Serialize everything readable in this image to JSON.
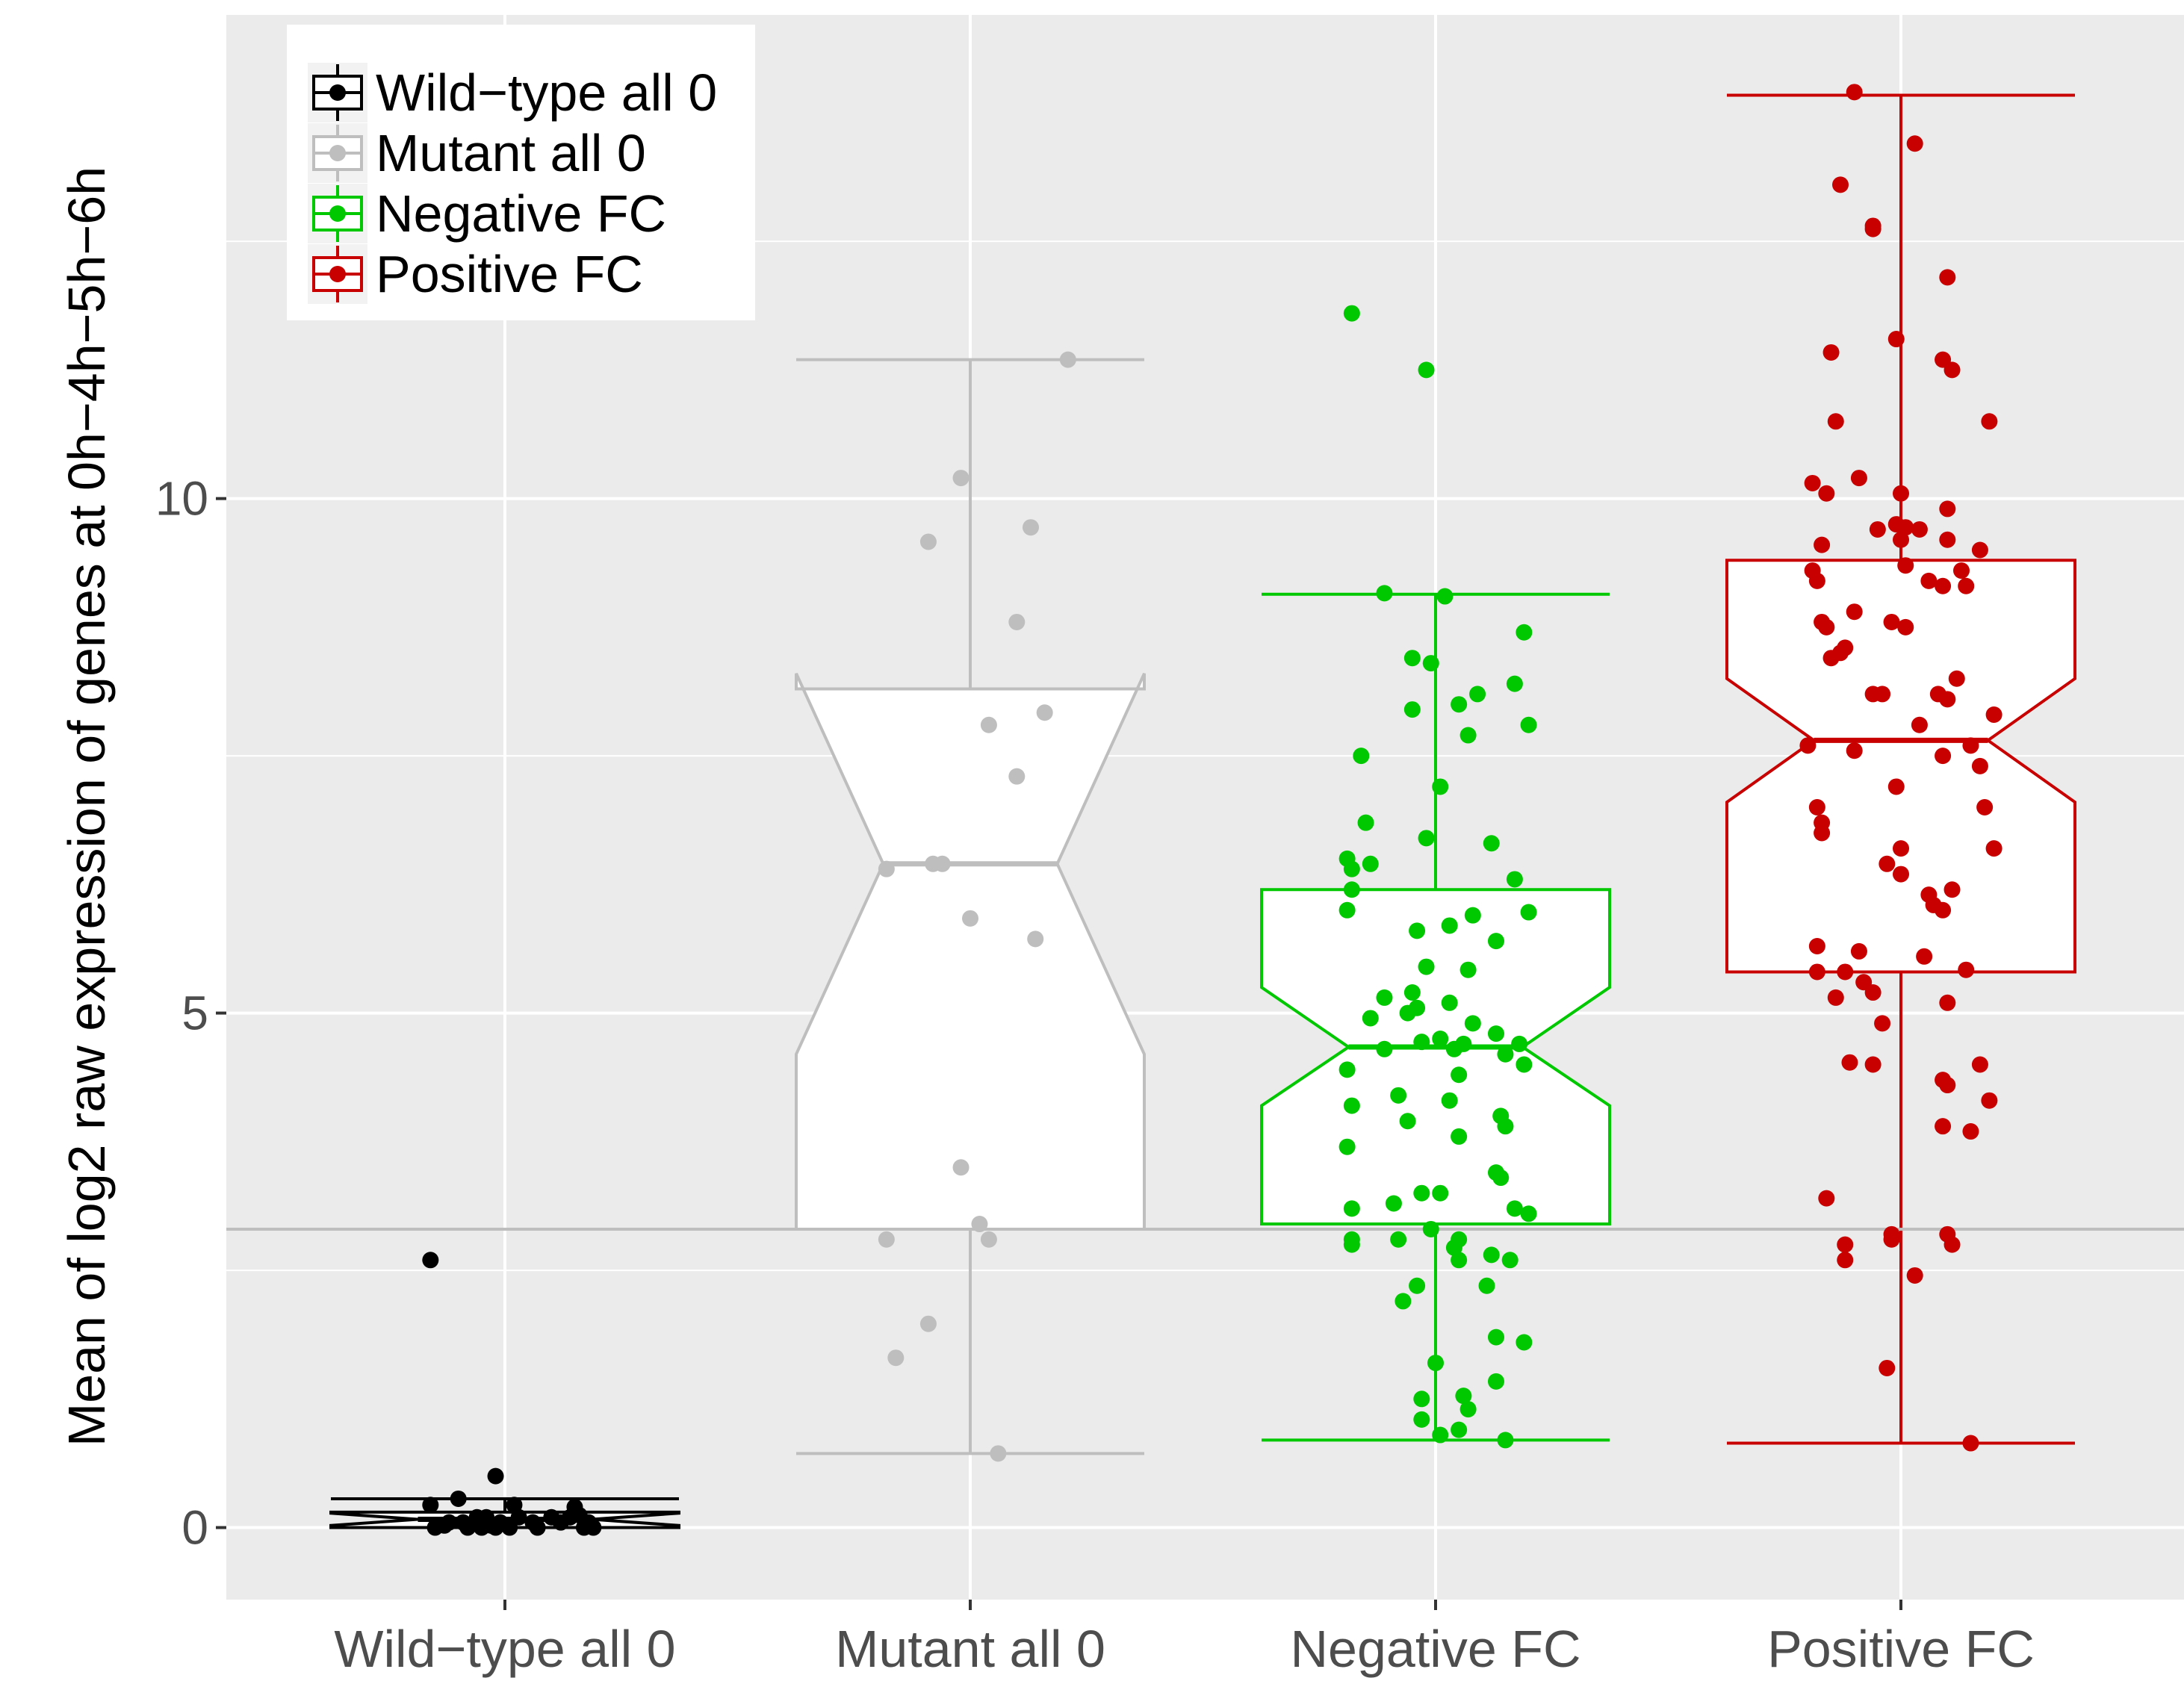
{
  "chart_data": {
    "type": "boxplot",
    "title": "",
    "xlabel": "",
    "ylabel": "Mean of log2 raw expression of genes at 0h−4h−5h−6h",
    "ylim": [
      -0.7,
      14.7
    ],
    "yticks": [
      0,
      5,
      10
    ],
    "ytick_labels": [
      "0",
      "5",
      "10"
    ],
    "reference_line_y": 2.9,
    "categories": [
      "Wild−type all 0",
      "Mutant all 0",
      "Negative FC",
      "Positive FC"
    ],
    "legend": {
      "position": "top-left",
      "entries": [
        "Wild−type all 0",
        "Mutant all 0",
        "Negative FC",
        "Positive FC"
      ]
    },
    "series": [
      {
        "name": "Wild−type all 0",
        "color": "#000000",
        "box": {
          "whisker_low": 0,
          "q1": 0,
          "median": 0.08,
          "q3": 0.15,
          "whisker_high": 0.28,
          "notch_low": 0.02,
          "notch_high": 0.14
        },
        "points": [
          [
            -0.16,
            2.6
          ],
          [
            -0.16,
            0.22
          ],
          [
            -0.1,
            0.28
          ],
          [
            -0.02,
            0.5
          ],
          [
            0.02,
            0.22
          ],
          [
            0.15,
            0.2
          ],
          [
            0.1,
            0.1
          ],
          [
            0.06,
            0.05
          ],
          [
            -0.04,
            0.1
          ],
          [
            -0.12,
            0.05
          ],
          [
            -0.03,
            0.02
          ],
          [
            0.18,
            0.05
          ],
          [
            -0.15,
            0.0
          ],
          [
            -0.08,
            0.0
          ],
          [
            -0.06,
            0.1
          ],
          [
            -0.01,
            0.05
          ],
          [
            0.03,
            0.1
          ],
          [
            0.07,
            0.0
          ],
          [
            0.12,
            0.05
          ],
          [
            0.17,
            0.0
          ],
          [
            -0.13,
            0.02
          ],
          [
            -0.02,
            0.0
          ],
          [
            0.01,
            0.0
          ],
          [
            0.14,
            0.1
          ],
          [
            0.19,
            0.0
          ],
          [
            -0.05,
            0.0
          ],
          [
            0.16,
            0.12
          ],
          [
            -0.09,
            0.05
          ]
        ]
      },
      {
        "name": "Mutant all 0",
        "color": "#bebebe",
        "box": {
          "whisker_low": 0.72,
          "q1": 2.9,
          "median": 6.45,
          "q3": 8.15,
          "whisker_high": 11.35,
          "notch_low": 4.6,
          "notch_high": 8.3
        },
        "points": [
          [
            0.21,
            11.35
          ],
          [
            -0.02,
            10.2
          ],
          [
            0.13,
            9.72
          ],
          [
            -0.09,
            9.58
          ],
          [
            0.1,
            8.8
          ],
          [
            0.04,
            7.8
          ],
          [
            0.16,
            7.92
          ],
          [
            0.1,
            7.3
          ],
          [
            -0.08,
            6.45
          ],
          [
            -0.18,
            6.4
          ],
          [
            -0.06,
            6.45
          ],
          [
            0.0,
            5.92
          ],
          [
            0.14,
            5.72
          ],
          [
            -0.02,
            3.5
          ],
          [
            0.02,
            2.95
          ],
          [
            0.04,
            2.8
          ],
          [
            -0.18,
            2.8
          ],
          [
            -0.09,
            1.98
          ],
          [
            -0.16,
            1.65
          ],
          [
            0.06,
            0.72
          ]
        ]
      },
      {
        "name": "Negative FC",
        "color": "#00c800",
        "box": {
          "whisker_low": 0.85,
          "q1": 2.95,
          "median": 4.67,
          "q3": 6.2,
          "whisker_high": 9.07,
          "notch_low": 4.1,
          "notch_high": 5.25
        },
        "points": [
          [
            -0.18,
            11.8
          ],
          [
            -0.02,
            11.25
          ],
          [
            -0.11,
            9.08
          ],
          [
            0.02,
            9.05
          ],
          [
            0.19,
            8.7
          ],
          [
            -0.05,
            8.45
          ],
          [
            -0.01,
            8.4
          ],
          [
            0.17,
            8.2
          ],
          [
            0.09,
            8.1
          ],
          [
            0.05,
            8.0
          ],
          [
            -0.05,
            7.95
          ],
          [
            0.2,
            7.8
          ],
          [
            0.07,
            7.7
          ],
          [
            -0.16,
            7.5
          ],
          [
            0.01,
            7.2
          ],
          [
            -0.15,
            6.85
          ],
          [
            -0.02,
            6.7
          ],
          [
            0.12,
            6.65
          ],
          [
            -0.19,
            6.5
          ],
          [
            -0.14,
            6.45
          ],
          [
            -0.18,
            6.4
          ],
          [
            0.17,
            6.3
          ],
          [
            -0.18,
            6.2
          ],
          [
            -0.19,
            6.0
          ],
          [
            0.2,
            5.98
          ],
          [
            0.08,
            5.95
          ],
          [
            0.03,
            5.85
          ],
          [
            -0.04,
            5.8
          ],
          [
            0.13,
            5.7
          ],
          [
            -0.02,
            5.45
          ],
          [
            0.07,
            5.42
          ],
          [
            -0.05,
            5.2
          ],
          [
            -0.11,
            5.15
          ],
          [
            0.03,
            5.1
          ],
          [
            -0.04,
            5.05
          ],
          [
            -0.06,
            5.0
          ],
          [
            -0.14,
            4.95
          ],
          [
            0.08,
            4.9
          ],
          [
            0.13,
            4.8
          ],
          [
            0.01,
            4.75
          ],
          [
            -0.03,
            4.72
          ],
          [
            0.06,
            4.7
          ],
          [
            0.18,
            4.7
          ],
          [
            -0.11,
            4.65
          ],
          [
            0.04,
            4.65
          ],
          [
            0.15,
            4.6
          ],
          [
            0.19,
            4.5
          ],
          [
            -0.19,
            4.45
          ],
          [
            0.05,
            4.4
          ],
          [
            -0.08,
            4.2
          ],
          [
            0.03,
            4.15
          ],
          [
            -0.18,
            4.1
          ],
          [
            0.14,
            4.0
          ],
          [
            -0.06,
            3.95
          ],
          [
            0.15,
            3.9
          ],
          [
            0.05,
            3.8
          ],
          [
            -0.19,
            3.7
          ],
          [
            0.13,
            3.45
          ],
          [
            0.14,
            3.4
          ],
          [
            -0.03,
            3.25
          ],
          [
            0.01,
            3.25
          ],
          [
            -0.09,
            3.15
          ],
          [
            -0.18,
            3.1
          ],
          [
            0.17,
            3.1
          ],
          [
            0.2,
            3.05
          ],
          [
            -0.01,
            2.9
          ],
          [
            -0.18,
            2.8
          ],
          [
            -0.08,
            2.8
          ],
          [
            0.05,
            2.8
          ],
          [
            -0.18,
            2.75
          ],
          [
            0.04,
            2.72
          ],
          [
            0.12,
            2.65
          ],
          [
            0.16,
            2.6
          ],
          [
            0.05,
            2.6
          ],
          [
            -0.04,
            2.35
          ],
          [
            0.11,
            2.35
          ],
          [
            -0.07,
            2.2
          ],
          [
            0.13,
            1.85
          ],
          [
            0.19,
            1.8
          ],
          [
            0.0,
            1.6
          ],
          [
            0.13,
            1.42
          ],
          [
            -0.03,
            1.25
          ],
          [
            0.06,
            1.28
          ],
          [
            0.07,
            1.15
          ],
          [
            -0.03,
            1.05
          ],
          [
            0.05,
            0.95
          ],
          [
            0.01,
            0.9
          ],
          [
            0.15,
            0.85
          ]
        ]
      },
      {
        "name": "Positive FC",
        "color": "#c80000",
        "box": {
          "whisker_low": 0.82,
          "q1": 5.4,
          "median": 7.65,
          "q3": 9.4,
          "whisker_high": 13.92,
          "notch_low": 7.05,
          "notch_high": 8.25
        },
        "points": [
          [
            -0.1,
            13.95
          ],
          [
            0.03,
            13.45
          ],
          [
            -0.13,
            13.05
          ],
          [
            -0.06,
            12.65
          ],
          [
            -0.06,
            12.62
          ],
          [
            0.1,
            12.15
          ],
          [
            -0.01,
            11.55
          ],
          [
            -0.15,
            11.42
          ],
          [
            0.09,
            11.35
          ],
          [
            0.11,
            11.25
          ],
          [
            0.19,
            10.75
          ],
          [
            -0.14,
            10.75
          ],
          [
            -0.19,
            10.15
          ],
          [
            -0.09,
            10.2
          ],
          [
            -0.16,
            10.05
          ],
          [
            0.0,
            10.05
          ],
          [
            0.1,
            9.9
          ],
          [
            -0.01,
            9.75
          ],
          [
            0.01,
            9.72
          ],
          [
            -0.05,
            9.7
          ],
          [
            0.04,
            9.7
          ],
          [
            0.0,
            9.6
          ],
          [
            0.1,
            9.6
          ],
          [
            -0.17,
            9.55
          ],
          [
            0.17,
            9.5
          ],
          [
            0.01,
            9.35
          ],
          [
            0.13,
            9.3
          ],
          [
            -0.19,
            9.3
          ],
          [
            -0.18,
            9.2
          ],
          [
            0.06,
            9.2
          ],
          [
            0.09,
            9.15
          ],
          [
            0.14,
            9.15
          ],
          [
            -0.1,
            8.9
          ],
          [
            -0.17,
            8.8
          ],
          [
            -0.02,
            8.8
          ],
          [
            0.01,
            8.75
          ],
          [
            -0.16,
            8.75
          ],
          [
            -0.12,
            8.55
          ],
          [
            -0.13,
            8.5
          ],
          [
            -0.15,
            8.45
          ],
          [
            0.12,
            8.25
          ],
          [
            -0.04,
            8.1
          ],
          [
            0.08,
            8.1
          ],
          [
            -0.06,
            8.1
          ],
          [
            0.1,
            8.05
          ],
          [
            0.2,
            7.9
          ],
          [
            0.04,
            7.8
          ],
          [
            0.15,
            7.6
          ],
          [
            -0.2,
            7.6
          ],
          [
            -0.1,
            7.55
          ],
          [
            0.09,
            7.5
          ],
          [
            0.17,
            7.4
          ],
          [
            -0.01,
            7.2
          ],
          [
            0.18,
            7.0
          ],
          [
            -0.18,
            7.0
          ],
          [
            -0.17,
            6.85
          ],
          [
            -0.17,
            6.75
          ],
          [
            0.0,
            6.6
          ],
          [
            0.2,
            6.6
          ],
          [
            -0.03,
            6.45
          ],
          [
            0.0,
            6.35
          ],
          [
            0.11,
            6.2
          ],
          [
            0.06,
            6.15
          ],
          [
            0.07,
            6.05
          ],
          [
            0.09,
            6.0
          ],
          [
            -0.18,
            5.65
          ],
          [
            -0.09,
            5.6
          ],
          [
            0.05,
            5.55
          ],
          [
            -0.08,
            5.3
          ],
          [
            0.14,
            5.42
          ],
          [
            -0.12,
            5.4
          ],
          [
            -0.18,
            5.4
          ],
          [
            -0.14,
            5.15
          ],
          [
            -0.06,
            5.2
          ],
          [
            -0.04,
            4.9
          ],
          [
            0.1,
            5.1
          ],
          [
            -0.11,
            4.52
          ],
          [
            -0.06,
            4.5
          ],
          [
            0.17,
            4.5
          ],
          [
            0.09,
            4.35
          ],
          [
            0.1,
            4.3
          ],
          [
            0.19,
            4.15
          ],
          [
            0.09,
            3.9
          ],
          [
            0.15,
            3.85
          ],
          [
            -0.16,
            3.2
          ],
          [
            -0.02,
            2.85
          ],
          [
            0.1,
            2.85
          ],
          [
            -0.02,
            2.8
          ],
          [
            -0.12,
            2.75
          ],
          [
            0.11,
            2.75
          ],
          [
            -0.12,
            2.6
          ],
          [
            0.03,
            2.45
          ],
          [
            -0.03,
            1.55
          ],
          [
            0.15,
            0.82
          ]
        ]
      }
    ]
  }
}
